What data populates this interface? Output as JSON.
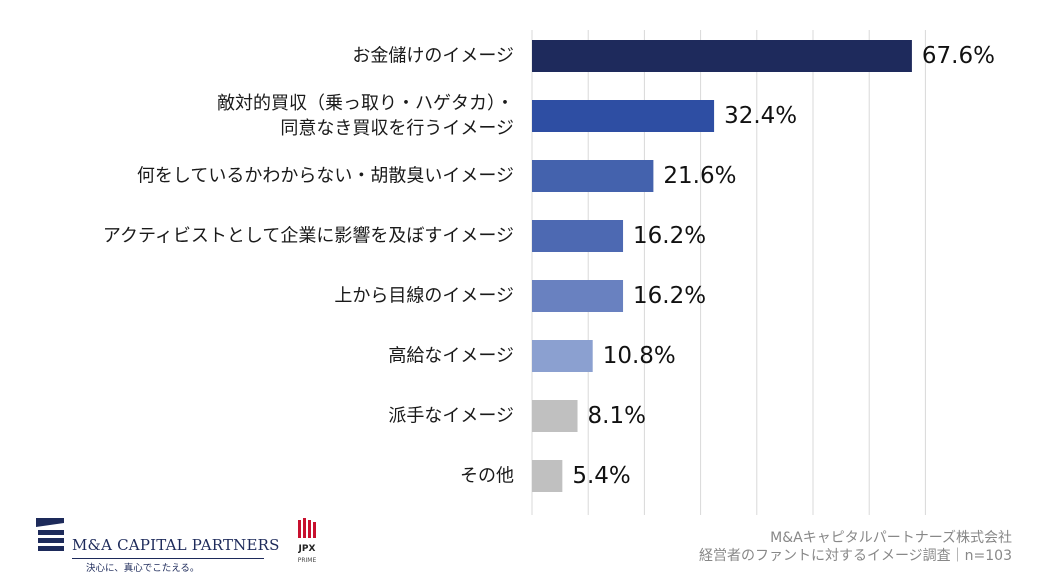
{
  "chart_data": {
    "type": "bar",
    "orientation": "horizontal",
    "categories": [
      [
        "お金儲けのイメージ"
      ],
      [
        "敵対的買収（乗っ取り・ハゲタカ）・",
        "同意なき買収を行うイメージ"
      ],
      [
        "何をしているかわからない・胡散臭いイメージ"
      ],
      [
        "アクティビストとして企業に影響を及ぼすイメージ"
      ],
      [
        "上から目線のイメージ"
      ],
      [
        "高給なイメージ"
      ],
      [
        "派手なイメージ"
      ],
      [
        "その他"
      ]
    ],
    "values": [
      67.6,
      32.4,
      21.6,
      16.2,
      16.2,
      10.8,
      8.1,
      5.4
    ],
    "value_labels": [
      "67.6%",
      "32.4%",
      "21.6%",
      "16.2%",
      "16.2%",
      "10.8%",
      "8.1%",
      "5.4%"
    ],
    "bar_colors": [
      "#1e2a5c",
      "#2e4ea3",
      "#4462ad",
      "#4d69b2",
      "#6981c0",
      "#8ba0d0",
      "#c0c0c0",
      "#c0c0c0"
    ],
    "xlim": [
      0,
      70
    ],
    "grid": true,
    "title": "",
    "xlabel": "",
    "ylabel": ""
  },
  "footer": {
    "source_line1": "M&Aキャピタルパートナーズ株式会社",
    "source_line2": "経営者のファントに対するイメージ調査｜n=103"
  },
  "logo": {
    "company": "M&A CAPITAL PARTNERS",
    "tagline": "決心に、真心でこたえる。",
    "jpx": "JPX",
    "jpx_sub": "PRIME"
  },
  "colors": {
    "grid": "#d9d9d9",
    "logo_navy": "#1d2a5a",
    "jpx_red": "#c8102e"
  }
}
